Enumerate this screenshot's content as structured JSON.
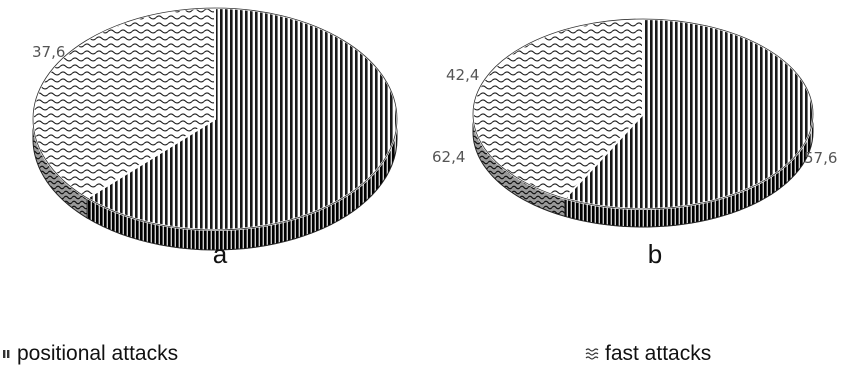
{
  "chart_data": [
    {
      "type": "pie",
      "label": "a",
      "categories": [
        "positional attacks",
        "fast attacks"
      ],
      "values": [
        62.4,
        37.6
      ],
      "value_labels": [
        "62,4",
        "37,6"
      ]
    },
    {
      "type": "pie",
      "label": "b",
      "categories": [
        "positional attacks",
        "fast attacks"
      ],
      "values": [
        57.6,
        42.4
      ],
      "value_labels": [
        "57,6",
        "42,4"
      ]
    }
  ],
  "legend": {
    "placement": "bottom",
    "items": [
      {
        "label": "positional attacks",
        "pattern": "vertical-stripes"
      },
      {
        "label": "fast attacks",
        "pattern": "wavy"
      }
    ]
  },
  "colors": {
    "ink": "#1a1a1a",
    "face": "#ffffff",
    "label": "#555555"
  }
}
